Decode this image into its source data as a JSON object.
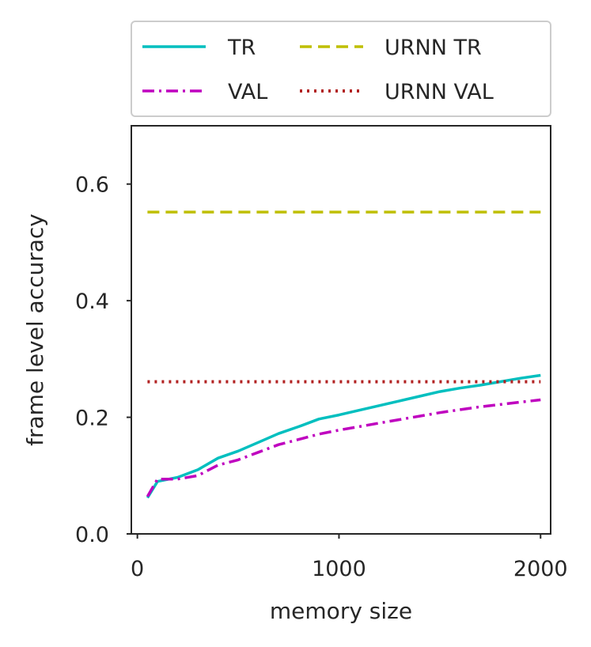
{
  "chart_data": {
    "type": "line",
    "title": "",
    "xlabel": "memory size",
    "ylabel": "frame level accuracy",
    "xlim": [
      -30,
      2050
    ],
    "ylim": [
      0,
      0.7
    ],
    "xticks": [
      0,
      1000,
      2000
    ],
    "xtick_labels": [
      "0",
      "1000",
      "2000"
    ],
    "yticks": [
      0.0,
      0.2,
      0.4,
      0.6
    ],
    "ytick_labels": [
      "0.0",
      "0.2",
      "0.4",
      "0.6"
    ],
    "grid": false,
    "legend_position": "top, above plot",
    "series": [
      {
        "name": "TR",
        "style": "solid",
        "color": "#00bfbf",
        "x": [
          50,
          100,
          200,
          300,
          400,
          500,
          600,
          700,
          800,
          900,
          1000,
          1100,
          1200,
          1300,
          1400,
          1500,
          1600,
          1700,
          1800,
          1900,
          2000
        ],
        "y": [
          0.062,
          0.09,
          0.097,
          0.11,
          0.13,
          0.142,
          0.157,
          0.172,
          0.184,
          0.197,
          0.204,
          0.212,
          0.22,
          0.228,
          0.236,
          0.244,
          0.25,
          0.255,
          0.261,
          0.267,
          0.272
        ]
      },
      {
        "name": "VAL",
        "style": "dashdot",
        "color": "#bf00bf",
        "x": [
          50,
          100,
          200,
          300,
          400,
          500,
          600,
          700,
          800,
          900,
          1000,
          1100,
          1200,
          1300,
          1400,
          1500,
          1600,
          1700,
          1800,
          1900,
          2000
        ],
        "y": [
          0.064,
          0.094,
          0.094,
          0.1,
          0.118,
          0.127,
          0.14,
          0.153,
          0.162,
          0.171,
          0.178,
          0.184,
          0.19,
          0.196,
          0.202,
          0.208,
          0.213,
          0.218,
          0.222,
          0.226,
          0.23
        ]
      },
      {
        "name": "URNN TR",
        "style": "dashed",
        "color": "#bfbf00",
        "x": [
          50,
          2000
        ],
        "y": [
          0.552,
          0.552
        ]
      },
      {
        "name": "URNN VAL",
        "style": "dotted",
        "color": "#b22222",
        "x": [
          50,
          2000
        ],
        "y": [
          0.261,
          0.261
        ]
      }
    ]
  }
}
